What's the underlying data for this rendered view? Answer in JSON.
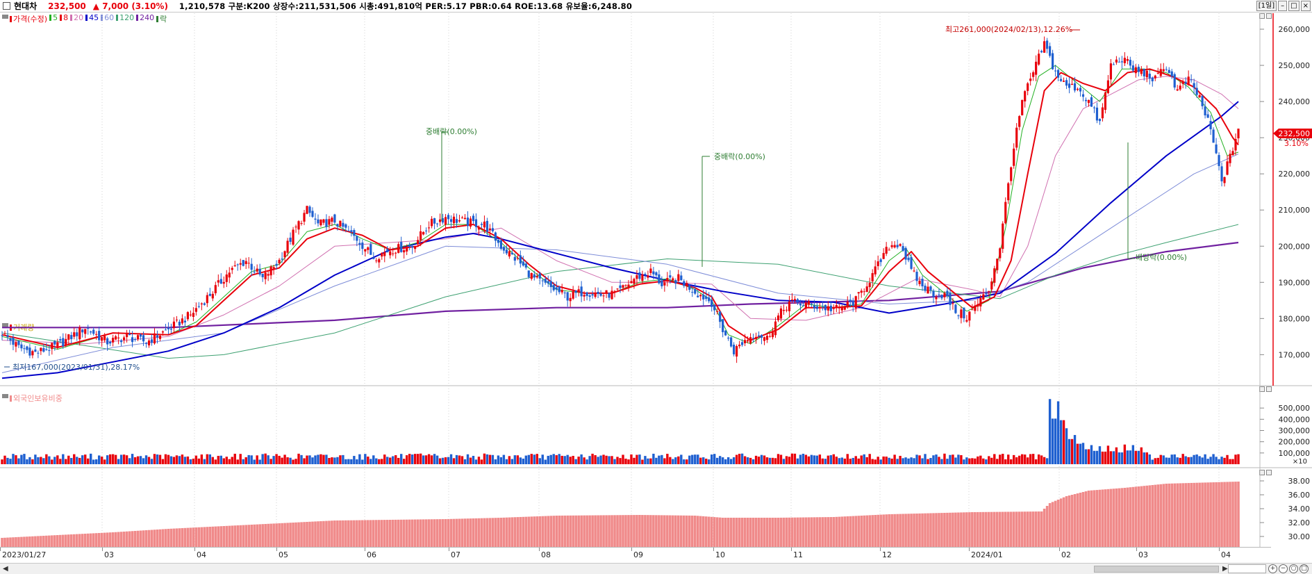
{
  "header": {
    "stock_name": "현대차",
    "price": "232,500",
    "change": "▲ 7,000 (3.10%)",
    "info": "1,210,578  구분:K200  상장수:211,531,506  시총:491,810억  PER:5.17  PBR:0.64  ROE:13.68  유보율:6,248.80",
    "period_button": "[1일]"
  },
  "price_legend": [
    {
      "label": "가격(수정)",
      "color": "#e8000b"
    },
    {
      "label": "5",
      "color": "#22b022"
    },
    {
      "label": "8",
      "color": "#e8000b"
    },
    {
      "label": "20",
      "color": "#d070b0"
    },
    {
      "label": "45",
      "color": "#0000c8"
    },
    {
      "label": "60",
      "color": "#7d8cd8"
    },
    {
      "label": "120",
      "color": "#3ca070"
    },
    {
      "label": "240",
      "color": "#7020a0"
    },
    {
      "label": "락",
      "color": "#2e7d32"
    }
  ],
  "volume_legend": "거래량",
  "foreign_legend": "외국인보유비중",
  "colors": {
    "up": "#e8000b",
    "down": "#1e5fd0",
    "foreign": "#f08a8a"
  },
  "annotations": {
    "high": "최고261,000(2024/02/13),12.26%",
    "low": "최저167,000(2023/01/31),28.17%",
    "jungbaerak1": "중배락(0.00%)",
    "jungbaerak2": "중배락(0.00%)",
    "baedangrak": "배당락(0.00%)"
  },
  "current_price_box": "232,500",
  "current_change_pct": "3.10%",
  "chart_data": [
    {
      "type": "candlestick",
      "title": "현대차",
      "ylim": [
        162000,
        265000
      ],
      "y_ticks": [
        "260,000",
        "250,000",
        "240,000",
        "230,000",
        "220,000",
        "210,000",
        "200,000",
        "190,000",
        "180,000",
        "170,000"
      ],
      "x_tick_labels": [
        "2023/01/27",
        "03",
        "04",
        "05",
        "06",
        "07",
        "08",
        "09",
        "10",
        "11",
        "12",
        "2024/01",
        "02",
        "03",
        "04"
      ],
      "price_path": [
        [
          0,
          176000
        ],
        [
          6,
          172000
        ],
        [
          12,
          170500
        ],
        [
          20,
          172500
        ],
        [
          30,
          177500
        ],
        [
          38,
          173500
        ],
        [
          45,
          175000
        ],
        [
          52,
          173500
        ],
        [
          60,
          177000
        ],
        [
          68,
          181000
        ],
        [
          76,
          187500
        ],
        [
          82,
          193000
        ],
        [
          88,
          196000
        ],
        [
          94,
          191000
        ],
        [
          100,
          196000
        ],
        [
          106,
          205000
        ],
        [
          110,
          210000
        ],
        [
          114,
          206000
        ],
        [
          120,
          207000
        ],
        [
          128,
          202000
        ],
        [
          134,
          197000
        ],
        [
          140,
          199000
        ],
        [
          148,
          200000
        ],
        [
          154,
          206000
        ],
        [
          160,
          208000
        ],
        [
          168,
          206500
        ],
        [
          174,
          206000
        ],
        [
          180,
          200000
        ],
        [
          186,
          196000
        ],
        [
          192,
          191000
        ],
        [
          198,
          188500
        ],
        [
          204,
          186000
        ],
        [
          210,
          187500
        ],
        [
          216,
          186500
        ],
        [
          222,
          187000
        ],
        [
          228,
          191000
        ],
        [
          234,
          193000
        ],
        [
          238,
          189500
        ],
        [
          244,
          191000
        ],
        [
          250,
          187500
        ],
        [
          256,
          184500
        ],
        [
          260,
          177000
        ],
        [
          264,
          171000
        ],
        [
          268,
          174000
        ],
        [
          272,
          176000
        ],
        [
          276,
          174500
        ],
        [
          280,
          180500
        ],
        [
          284,
          184500
        ],
        [
          290,
          184000
        ],
        [
          296,
          183000
        ],
        [
          302,
          182500
        ],
        [
          308,
          185000
        ],
        [
          314,
          192000
        ],
        [
          320,
          200000
        ],
        [
          324,
          201000
        ],
        [
          328,
          193000
        ],
        [
          332,
          189000
        ],
        [
          336,
          187000
        ],
        [
          340,
          186500
        ],
        [
          344,
          182000
        ],
        [
          348,
          180500
        ],
        [
          352,
          184000
        ],
        [
          356,
          188000
        ],
        [
          360,
          200000
        ],
        [
          364,
          223000
        ],
        [
          368,
          240000
        ],
        [
          372,
          248000
        ],
        [
          376,
          256000
        ],
        [
          380,
          248000
        ],
        [
          384,
          244000
        ],
        [
          388,
          244000
        ],
        [
          392,
          240000
        ],
        [
          396,
          234000
        ],
        [
          400,
          250000
        ],
        [
          404,
          252000
        ],
        [
          408,
          249000
        ],
        [
          412,
          248000
        ],
        [
          416,
          246000
        ],
        [
          420,
          250000
        ],
        [
          424,
          243000
        ],
        [
          428,
          246000
        ],
        [
          432,
          241000
        ],
        [
          436,
          232000
        ],
        [
          440,
          218000
        ],
        [
          443,
          224500
        ],
        [
          446,
          232500
        ]
      ],
      "ma_5_path": [
        [
          0,
          175000
        ],
        [
          20,
          171500
        ],
        [
          40,
          176000
        ],
        [
          60,
          175500
        ],
        [
          70,
          179000
        ],
        [
          80,
          186000
        ],
        [
          90,
          193000
        ],
        [
          100,
          195000
        ],
        [
          110,
          204000
        ],
        [
          120,
          206000
        ],
        [
          130,
          202000
        ],
        [
          140,
          199000
        ],
        [
          150,
          201000
        ],
        [
          160,
          206000
        ],
        [
          170,
          206000
        ],
        [
          180,
          201000
        ],
        [
          190,
          194000
        ],
        [
          200,
          188000
        ],
        [
          210,
          187000
        ],
        [
          220,
          187000
        ],
        [
          230,
          190000
        ],
        [
          240,
          191000
        ],
        [
          250,
          188000
        ],
        [
          256,
          185000
        ],
        [
          262,
          175500
        ],
        [
          270,
          173000
        ],
        [
          280,
          178000
        ],
        [
          290,
          184000
        ],
        [
          300,
          183000
        ],
        [
          310,
          184000
        ],
        [
          320,
          196000
        ],
        [
          326,
          199500
        ],
        [
          332,
          192000
        ],
        [
          340,
          187000
        ],
        [
          348,
          182000
        ],
        [
          356,
          185000
        ],
        [
          362,
          205000
        ],
        [
          368,
          232000
        ],
        [
          374,
          247000
        ],
        [
          380,
          250000
        ],
        [
          388,
          245000
        ],
        [
          396,
          240000
        ],
        [
          404,
          249000
        ],
        [
          412,
          249000
        ],
        [
          420,
          248000
        ],
        [
          428,
          244000
        ],
        [
          436,
          237000
        ],
        [
          442,
          225000
        ],
        [
          446,
          226000
        ]
      ],
      "ma_8_path": [
        [
          0,
          175500
        ],
        [
          20,
          172000
        ],
        [
          40,
          176000
        ],
        [
          60,
          175500
        ],
        [
          70,
          178000
        ],
        [
          80,
          185000
        ],
        [
          90,
          192000
        ],
        [
          100,
          194000
        ],
        [
          110,
          202000
        ],
        [
          120,
          205000
        ],
        [
          130,
          203000
        ],
        [
          140,
          199000
        ],
        [
          150,
          200000
        ],
        [
          160,
          205000
        ],
        [
          170,
          206000
        ],
        [
          180,
          202000
        ],
        [
          190,
          195000
        ],
        [
          200,
          189000
        ],
        [
          210,
          187000
        ],
        [
          220,
          187000
        ],
        [
          230,
          189500
        ],
        [
          240,
          190500
        ],
        [
          250,
          188500
        ],
        [
          256,
          186000
        ],
        [
          262,
          178000
        ],
        [
          270,
          174000
        ],
        [
          280,
          177000
        ],
        [
          290,
          183000
        ],
        [
          300,
          183000
        ],
        [
          310,
          183500
        ],
        [
          320,
          193000
        ],
        [
          328,
          198500
        ],
        [
          334,
          193000
        ],
        [
          342,
          188000
        ],
        [
          350,
          183000
        ],
        [
          358,
          186000
        ],
        [
          364,
          196000
        ],
        [
          370,
          220000
        ],
        [
          376,
          243000
        ],
        [
          382,
          248000
        ],
        [
          390,
          245000
        ],
        [
          398,
          243000
        ],
        [
          406,
          248000
        ],
        [
          414,
          249000
        ],
        [
          422,
          247000
        ],
        [
          430,
          244000
        ],
        [
          438,
          238000
        ],
        [
          444,
          230000
        ],
        [
          446,
          228000
        ]
      ],
      "ma_20_path": [
        [
          0,
          174000
        ],
        [
          30,
          173000
        ],
        [
          60,
          175000
        ],
        [
          80,
          181000
        ],
        [
          100,
          189000
        ],
        [
          120,
          200000
        ],
        [
          140,
          201000
        ],
        [
          160,
          202000
        ],
        [
          180,
          205000
        ],
        [
          200,
          196000
        ],
        [
          220,
          190000
        ],
        [
          240,
          190000
        ],
        [
          256,
          189500
        ],
        [
          270,
          180000
        ],
        [
          290,
          179500
        ],
        [
          310,
          183000
        ],
        [
          330,
          191000
        ],
        [
          350,
          188000
        ],
        [
          360,
          186000
        ],
        [
          370,
          200000
        ],
        [
          380,
          225000
        ],
        [
          390,
          238000
        ],
        [
          400,
          242000
        ],
        [
          410,
          246000
        ],
        [
          420,
          247000
        ],
        [
          430,
          246000
        ],
        [
          440,
          242000
        ],
        [
          446,
          238000
        ]
      ],
      "ma_45_path": [
        [
          0,
          163500
        ],
        [
          20,
          165000
        ],
        [
          40,
          168000
        ],
        [
          60,
          171000
        ],
        [
          80,
          176000
        ],
        [
          100,
          183000
        ],
        [
          120,
          192000
        ],
        [
          140,
          199000
        ],
        [
          160,
          202500
        ],
        [
          170,
          203500
        ],
        [
          180,
          202000
        ],
        [
          200,
          198000
        ],
        [
          220,
          194000
        ],
        [
          240,
          190500
        ],
        [
          260,
          187500
        ],
        [
          280,
          185000
        ],
        [
          300,
          184500
        ],
        [
          320,
          181500
        ],
        [
          340,
          184000
        ],
        [
          360,
          187000
        ],
        [
          380,
          198000
        ],
        [
          400,
          212000
        ],
        [
          420,
          225000
        ],
        [
          440,
          236000
        ],
        [
          446,
          240000
        ]
      ],
      "ma_60_path": [
        [
          0,
          165000
        ],
        [
          40,
          172000
        ],
        [
          80,
          176000
        ],
        [
          120,
          189000
        ],
        [
          160,
          200000
        ],
        [
          200,
          199000
        ],
        [
          240,
          195000
        ],
        [
          280,
          187000
        ],
        [
          320,
          184000
        ],
        [
          350,
          185000
        ],
        [
          370,
          190000
        ],
        [
          390,
          200000
        ],
        [
          410,
          210000
        ],
        [
          430,
          220000
        ],
        [
          446,
          225500
        ]
      ],
      "ma_120_path": [
        [
          0,
          176000
        ],
        [
          30,
          172500
        ],
        [
          60,
          169000
        ],
        [
          80,
          170000
        ],
        [
          120,
          176000
        ],
        [
          160,
          186000
        ],
        [
          200,
          193000
        ],
        [
          240,
          196500
        ],
        [
          280,
          195000
        ],
        [
          320,
          189000
        ],
        [
          360,
          185500
        ],
        [
          380,
          192000
        ],
        [
          400,
          197000
        ],
        [
          420,
          201000
        ],
        [
          446,
          206000
        ]
      ],
      "ma_240_path": [
        [
          0,
          177500
        ],
        [
          60,
          177500
        ],
        [
          120,
          179500
        ],
        [
          160,
          182000
        ],
        [
          200,
          183000
        ],
        [
          240,
          183000
        ],
        [
          270,
          184000
        ],
        [
          320,
          185000
        ],
        [
          360,
          187500
        ],
        [
          390,
          194000
        ],
        [
          420,
          198500
        ],
        [
          446,
          201000
        ]
      ]
    },
    {
      "type": "bar",
      "title": "거래량",
      "y_ticks": [
        "500,000",
        "400,000",
        "300,000",
        "200,000",
        "100,000"
      ],
      "unit": "×10",
      "volume_spikes": [
        [
          378,
          580000
        ],
        [
          381,
          560000
        ],
        [
          384,
          320000
        ],
        [
          387,
          260000
        ],
        [
          390,
          190000
        ],
        [
          393,
          170000
        ],
        [
          396,
          160000
        ],
        [
          399,
          165000
        ],
        [
          402,
          150000
        ],
        [
          405,
          175000
        ],
        [
          408,
          170000
        ],
        [
          411,
          150000
        ]
      ]
    },
    {
      "type": "bar",
      "title": "외국인보유비중",
      "y_ticks": [
        "38.00",
        "36.00",
        "34.00",
        "32.00",
        "30.00"
      ],
      "foreign_path": [
        [
          0,
          29.8
        ],
        [
          20,
          30.2
        ],
        [
          40,
          30.6
        ],
        [
          60,
          31.1
        ],
        [
          80,
          31.5
        ],
        [
          100,
          31.9
        ],
        [
          120,
          32.3
        ],
        [
          140,
          32.4
        ],
        [
          160,
          32.5
        ],
        [
          180,
          32.7
        ],
        [
          200,
          33.0
        ],
        [
          230,
          33.1
        ],
        [
          250,
          33.0
        ],
        [
          260,
          32.7
        ],
        [
          280,
          32.7
        ],
        [
          300,
          32.8
        ],
        [
          320,
          33.2
        ],
        [
          350,
          33.5
        ],
        [
          375,
          33.6
        ],
        [
          378,
          34.8
        ],
        [
          384,
          35.8
        ],
        [
          392,
          36.6
        ],
        [
          405,
          37.0
        ],
        [
          420,
          37.6
        ],
        [
          446,
          37.9
        ]
      ]
    }
  ]
}
